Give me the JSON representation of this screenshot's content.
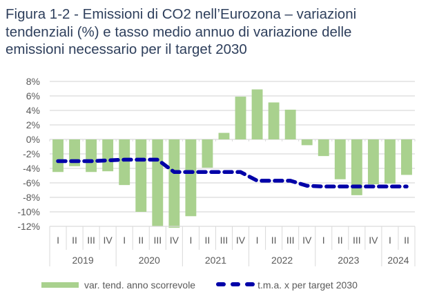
{
  "title_lines": [
    "Figura 1-2 - Emissioni di CO2 nell’Eurozona – variazioni",
    "tendenziali (%) e tasso medio annuo di variazione delle",
    "emissioni necessario per il target 2030"
  ],
  "colors": {
    "bar": "#a9d18e",
    "line": "#0000a8",
    "title": "#2e3f5c",
    "grid": "#d9d9d9",
    "text": "#595959"
  },
  "chart_data": {
    "type": "bar",
    "title": "Figura 1-2 - Emissioni di CO2 nell’Eurozona – variazioni tendenziali (%) e tasso medio annuo di variazione delle emissioni necessario per il target 2030",
    "xlabel": "",
    "ylabel": "",
    "ylim": [
      -12,
      8
    ],
    "yticks": [
      8,
      6,
      4,
      2,
      0,
      -2,
      -4,
      -6,
      -8,
      -10,
      -12
    ],
    "ytick_labels": [
      "8%",
      "6%",
      "4%",
      "2%",
      "0%",
      "-2%",
      "-4%",
      "-6%",
      "-8%",
      "-10%",
      "-12%"
    ],
    "grid": true,
    "legend_position": "bottom",
    "categories": [
      "I",
      "II",
      "III",
      "IV",
      "I",
      "II",
      "III",
      "IV",
      "I",
      "II",
      "III",
      "IV",
      "I",
      "II",
      "III",
      "IV",
      "I",
      "II",
      "III",
      "IV",
      "I",
      "II"
    ],
    "year_groups": [
      {
        "label": "2019",
        "count": 4
      },
      {
        "label": "2020",
        "count": 4
      },
      {
        "label": "2021",
        "count": 4
      },
      {
        "label": "2022",
        "count": 4
      },
      {
        "label": "2023",
        "count": 4
      },
      {
        "label": "2024",
        "count": 2
      }
    ],
    "series": [
      {
        "name": "var. tend. anno scorrevole",
        "type": "bar",
        "values": [
          -4.5,
          -3.7,
          -4.5,
          -4.4,
          -6.3,
          -10.0,
          -12.0,
          -12.2,
          -10.6,
          -3.9,
          0.9,
          5.9,
          6.9,
          5.1,
          4.1,
          -0.8,
          -2.3,
          -5.5,
          -7.7,
          -6.2,
          -6.1,
          -4.9
        ]
      },
      {
        "name": "t.m.a. x per  target 2030",
        "type": "line",
        "style": "dashed",
        "values": [
          -3.0,
          -3.0,
          -3.0,
          -2.9,
          -2.8,
          -2.8,
          -2.8,
          -4.5,
          -4.5,
          -4.5,
          -4.5,
          -4.5,
          -5.7,
          -5.7,
          -5.7,
          -6.4,
          -6.5,
          -6.5,
          -6.5,
          -6.5,
          -6.5,
          -6.5
        ]
      }
    ]
  },
  "legend": {
    "bar_label": "var. tend. anno scorrevole",
    "line_label": "t.m.a. x per  target 2030"
  }
}
